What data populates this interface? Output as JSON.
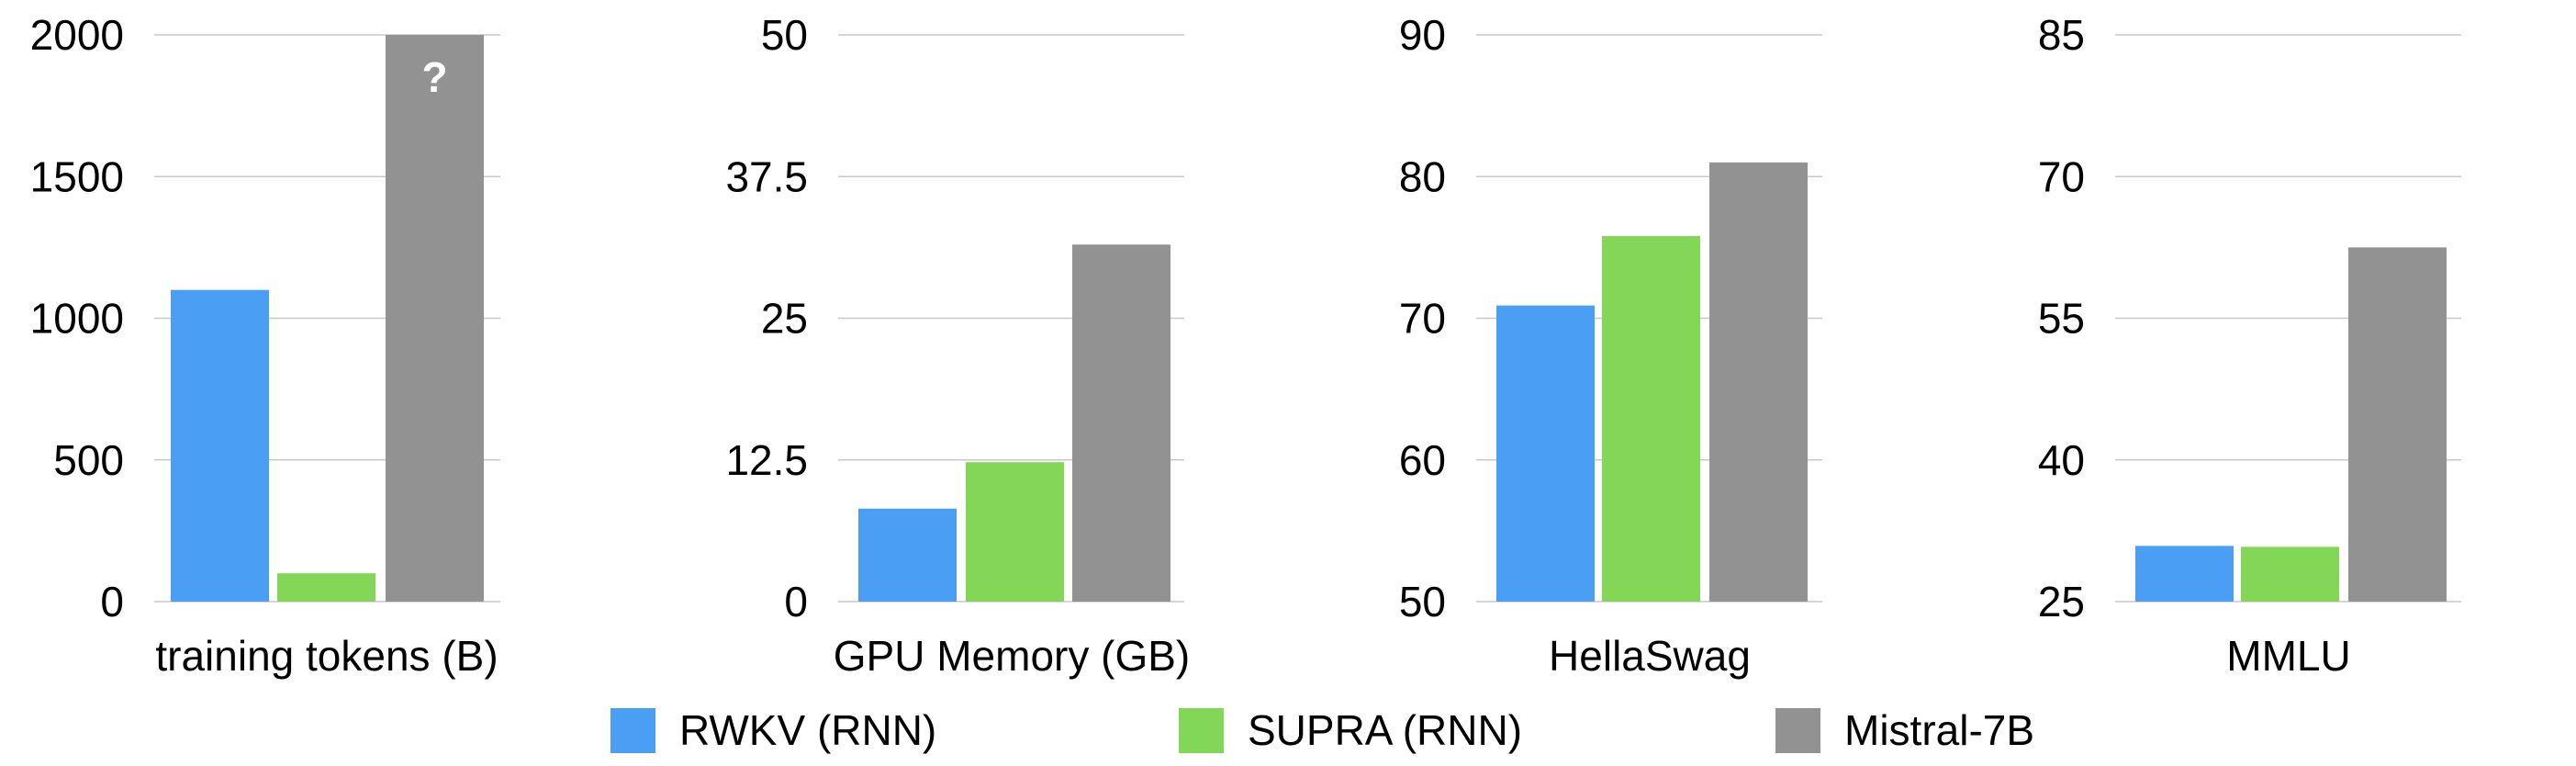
{
  "chart_data": [
    {
      "type": "bar",
      "xlabel": "training tokens (B)",
      "yticks": [
        "0",
        "500",
        "1000",
        "1500",
        "2000"
      ],
      "ylim": [
        0,
        2000
      ],
      "series": [
        {
          "name": "RWKV (RNN)",
          "value": 1100
        },
        {
          "name": "SUPRA (RNN)",
          "value": 100
        },
        {
          "name": "Mistral-7B",
          "value": 2000,
          "annotation": "?"
        }
      ]
    },
    {
      "type": "bar",
      "xlabel": "GPU Memory (GB)",
      "yticks": [
        "0",
        "12.5",
        "25",
        "37.5",
        "50"
      ],
      "ylim": [
        0,
        50
      ],
      "series": [
        {
          "name": "RWKV (RNN)",
          "value": 8.2
        },
        {
          "name": "SUPRA (RNN)",
          "value": 12.3
        },
        {
          "name": "Mistral-7B",
          "value": 31.5
        }
      ]
    },
    {
      "type": "bar",
      "xlabel": "HellaSwag",
      "yticks": [
        "50",
        "60",
        "70",
        "80",
        "90"
      ],
      "ylim": [
        50,
        90
      ],
      "series": [
        {
          "name": "RWKV (RNN)",
          "value": 70.9
        },
        {
          "name": "SUPRA (RNN)",
          "value": 75.8
        },
        {
          "name": "Mistral-7B",
          "value": 81.0
        }
      ]
    },
    {
      "type": "bar",
      "xlabel": "MMLU",
      "yticks": [
        "25",
        "40",
        "55",
        "70",
        "85"
      ],
      "ylim": [
        25,
        85
      ],
      "series": [
        {
          "name": "RWKV (RNN)",
          "value": 30.9
        },
        {
          "name": "SUPRA (RNN)",
          "value": 30.8
        },
        {
          "name": "Mistral-7B",
          "value": 62.5
        }
      ]
    }
  ],
  "legend": [
    {
      "label": "RWKV (RNN)",
      "color": "#4a9ff5"
    },
    {
      "label": "SUPRA (RNN)",
      "color": "#82d856"
    },
    {
      "label": "Mistral-7B",
      "color": "#929292"
    }
  ]
}
